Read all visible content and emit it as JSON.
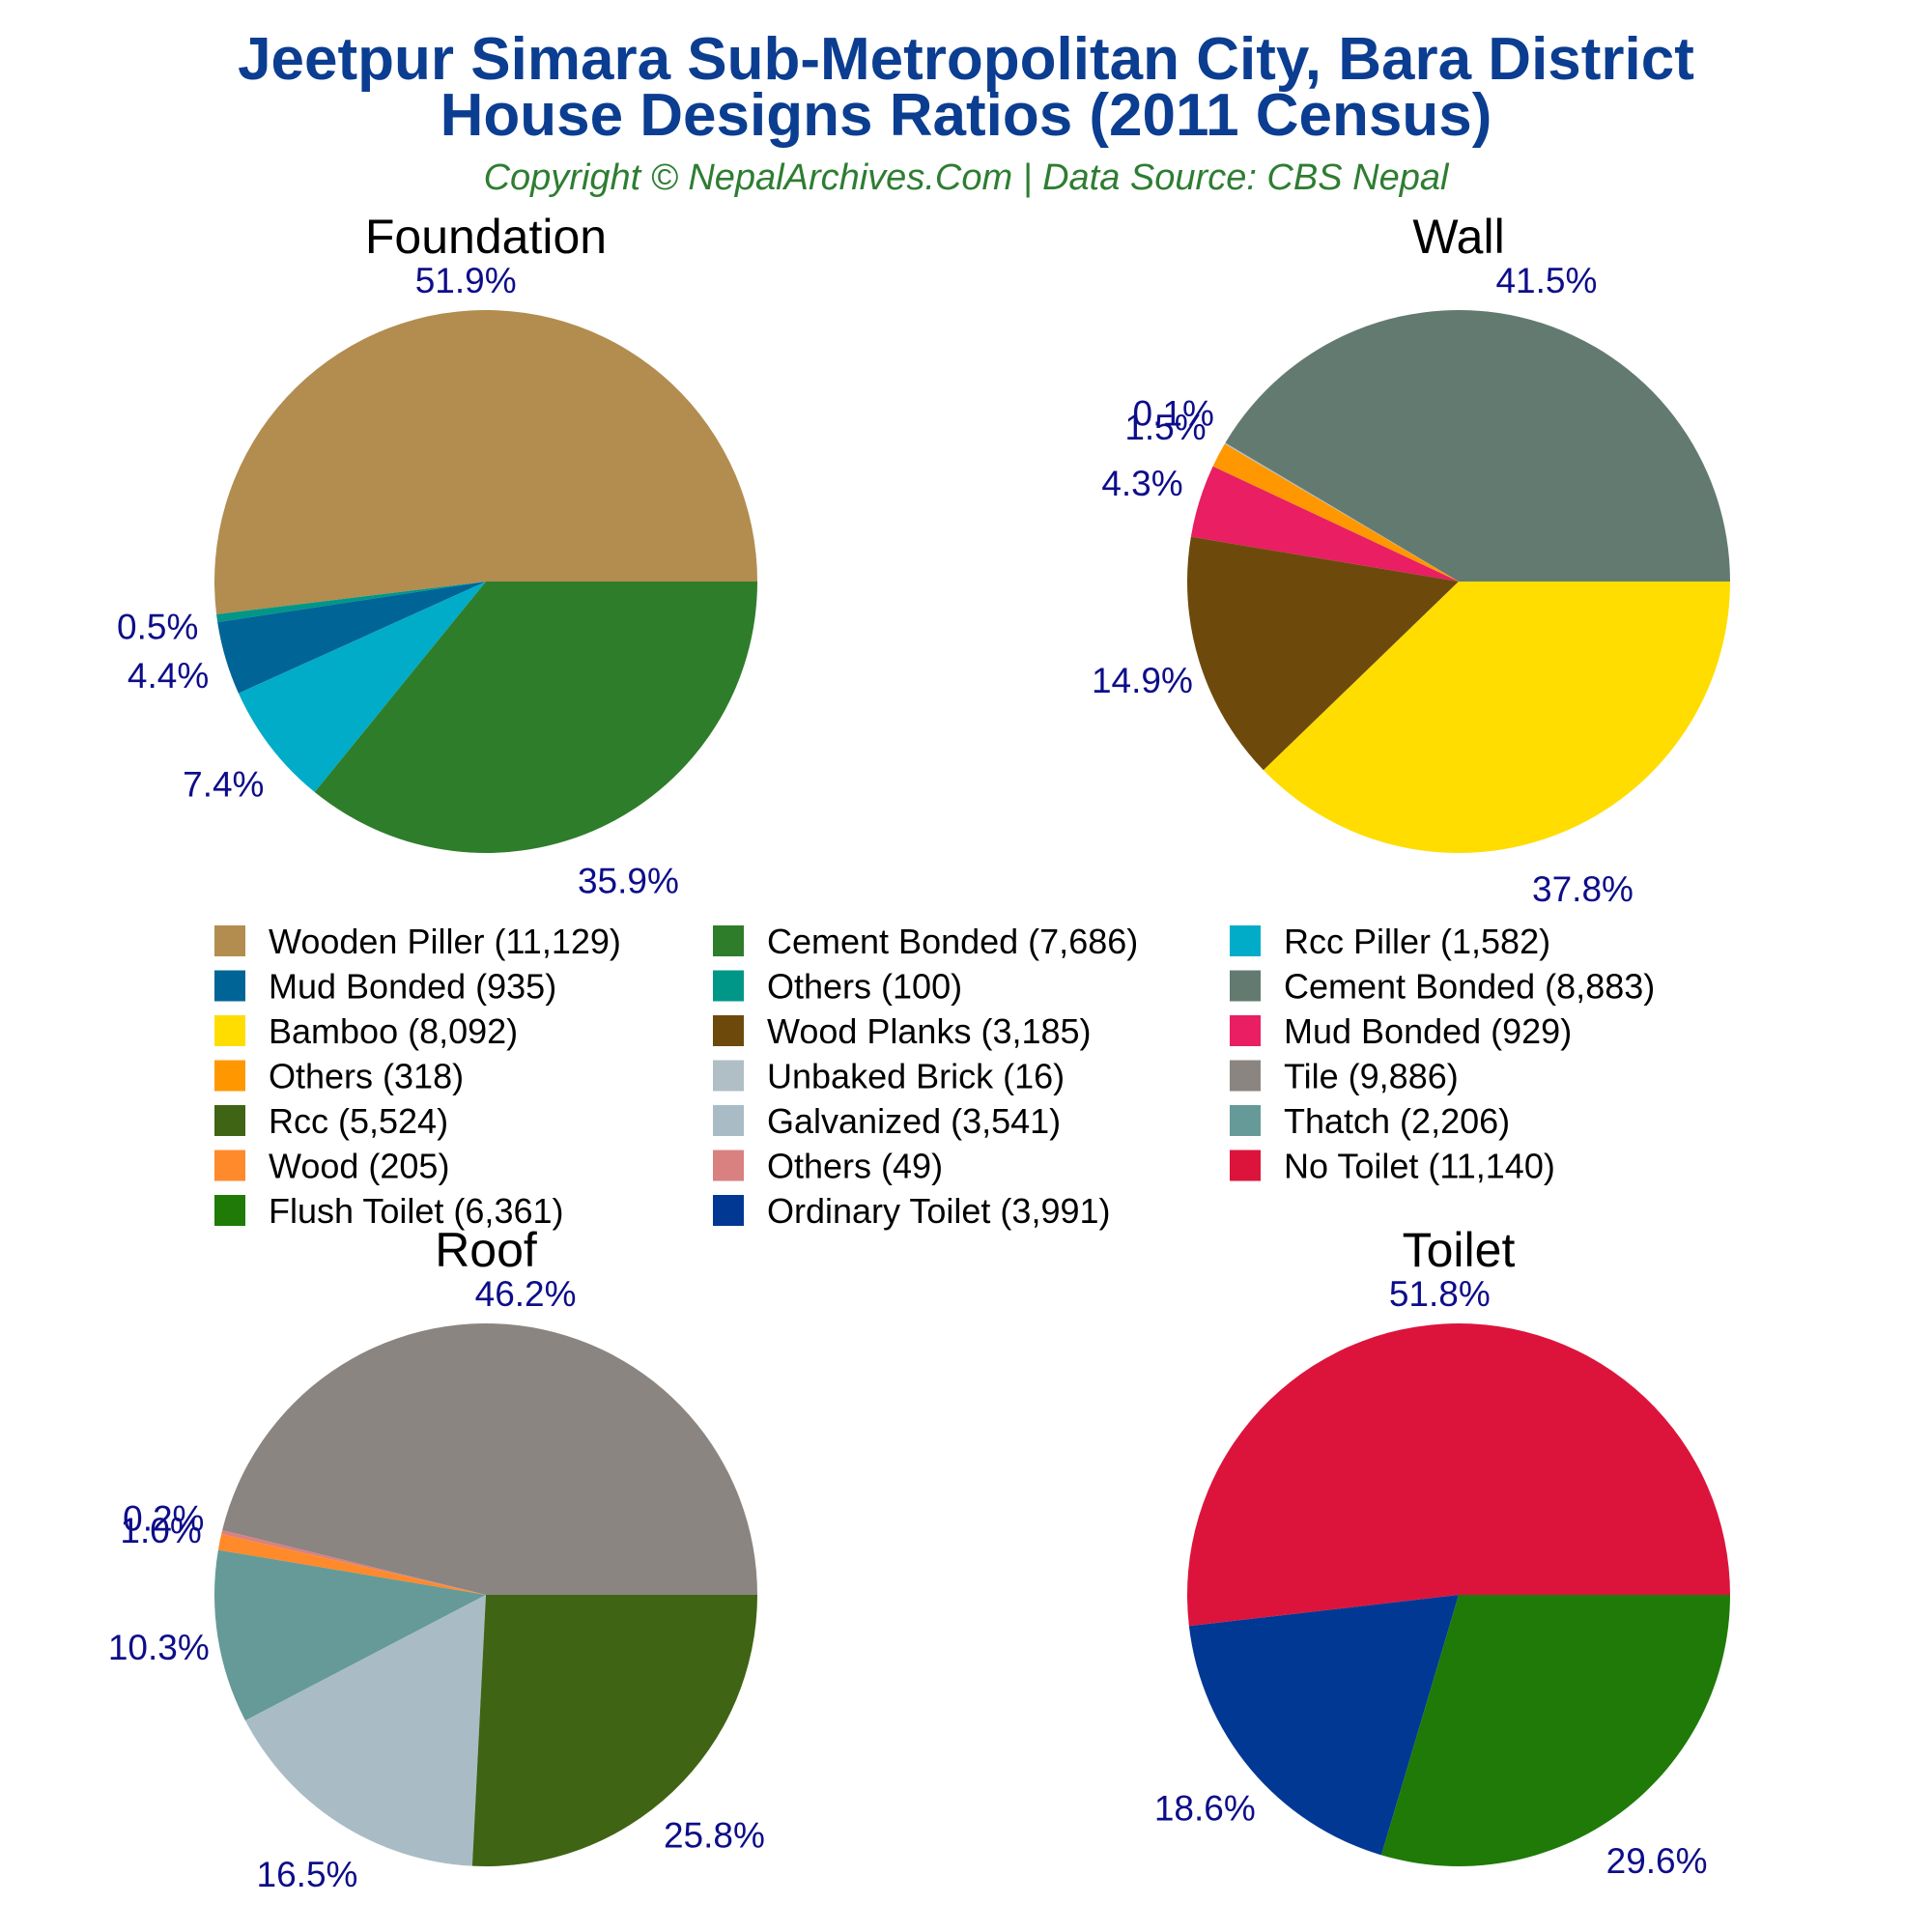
{
  "title_line1": "Jeetpur Simara Sub-Metropolitan City, Bara District",
  "title_line2": "House Designs Ratios (2011 Census)",
  "subtitle": "Copyright © NepalArchives.Com | Data Source: CBS Nepal",
  "chart_data": [
    {
      "type": "pie",
      "title": "Foundation",
      "slices": [
        {
          "label": "Wooden Piller",
          "value": 11129,
          "percent_label": "51.9%",
          "color": "#b28d4f"
        },
        {
          "label": "Others",
          "value": 100,
          "percent_label": "0.5%",
          "color": "#009688"
        },
        {
          "label": "Mud Bonded",
          "value": 935,
          "percent_label": "4.4%",
          "color": "#006496"
        },
        {
          "label": "Rcc Piller",
          "value": 1582,
          "percent_label": "7.4%",
          "color": "#00acc8"
        },
        {
          "label": "Cement Bonded",
          "value": 7686,
          "percent_label": "35.9%",
          "color": "#2e7d2a"
        }
      ]
    },
    {
      "type": "pie",
      "title": "Wall",
      "slices": [
        {
          "label": "Cement Bonded",
          "value": 8883,
          "percent_label": "41.5%",
          "color": "#637a70"
        },
        {
          "label": "Unbaked Brick",
          "value": 16,
          "percent_label": "0.1%",
          "color": "#b0bec5"
        },
        {
          "label": "Others",
          "value": 318,
          "percent_label": "1.5%",
          "color": "#ff9800"
        },
        {
          "label": "Mud Bonded",
          "value": 929,
          "percent_label": "4.3%",
          "color": "#e91e63"
        },
        {
          "label": "Wood Planks",
          "value": 3185,
          "percent_label": "14.9%",
          "color": "#6d4a0c"
        },
        {
          "label": "Bamboo",
          "value": 8092,
          "percent_label": "37.8%",
          "color": "#ffdd00"
        }
      ]
    },
    {
      "type": "pie",
      "title": "Roof",
      "slices": [
        {
          "label": "Tile",
          "value": 9886,
          "percent_label": "46.2%",
          "color": "#8a8581"
        },
        {
          "label": "Others",
          "value": 49,
          "percent_label": "0.2%",
          "color": "#d98080"
        },
        {
          "label": "Wood",
          "value": 205,
          "percent_label": "1.0%",
          "color": "#ff8a2b"
        },
        {
          "label": "Thatch",
          "value": 2206,
          "percent_label": "10.3%",
          "color": "#659a98"
        },
        {
          "label": "Galvanized",
          "value": 3541,
          "percent_label": "16.5%",
          "color": "#a9bcc6"
        },
        {
          "label": "Rcc",
          "value": 5524,
          "percent_label": "25.8%",
          "color": "#3f6414"
        }
      ]
    },
    {
      "type": "pie",
      "title": "Toilet",
      "slices": [
        {
          "label": "No Toilet",
          "value": 11140,
          "percent_label": "51.8%",
          "color": "#dc143c"
        },
        {
          "label": "Ordinary Toilet",
          "value": 3991,
          "percent_label": "18.6%",
          "color": "#003894"
        },
        {
          "label": "Flush Toilet",
          "value": 6361,
          "percent_label": "29.6%",
          "color": "#1f7a08"
        }
      ]
    }
  ],
  "legend": [
    {
      "label": "Wooden Piller (11,129)",
      "color": "#b28d4f"
    },
    {
      "label": "Cement Bonded (7,686)",
      "color": "#2e7d2a"
    },
    {
      "label": "Rcc Piller (1,582)",
      "color": "#00acc8"
    },
    {
      "label": "Mud Bonded (935)",
      "color": "#006496"
    },
    {
      "label": "Others (100)",
      "color": "#009688"
    },
    {
      "label": "Cement Bonded (8,883)",
      "color": "#637a70"
    },
    {
      "label": "Bamboo (8,092)",
      "color": "#ffdd00"
    },
    {
      "label": "Wood Planks (3,185)",
      "color": "#6d4a0c"
    },
    {
      "label": "Mud Bonded (929)",
      "color": "#e91e63"
    },
    {
      "label": "Others (318)",
      "color": "#ff9800"
    },
    {
      "label": "Unbaked Brick (16)",
      "color": "#b0bec5"
    },
    {
      "label": "Tile (9,886)",
      "color": "#8a8581"
    },
    {
      "label": "Rcc (5,524)",
      "color": "#3f6414"
    },
    {
      "label": "Galvanized (3,541)",
      "color": "#a9bcc6"
    },
    {
      "label": "Thatch (2,206)",
      "color": "#659a98"
    },
    {
      "label": "Wood (205)",
      "color": "#ff8a2b"
    },
    {
      "label": "Others (49)",
      "color": "#d98080"
    },
    {
      "label": "No Toilet (11,140)",
      "color": "#dc143c"
    },
    {
      "label": "Flush Toilet (6,361)",
      "color": "#1f7a08"
    },
    {
      "label": "Ordinary Toilet (3,991)",
      "color": "#003894"
    }
  ]
}
